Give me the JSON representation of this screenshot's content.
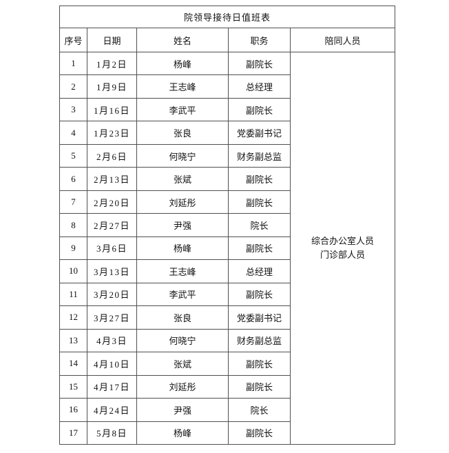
{
  "title": "院领导接待日值班表",
  "columns": [
    "序号",
    "日期",
    "姓名",
    "职务",
    "陪同人员"
  ],
  "rows": [
    {
      "no": "1",
      "date": "1月2日",
      "name": "杨峰",
      "position": "副院长"
    },
    {
      "no": "2",
      "date": "1月9日",
      "name": "王志峰",
      "position": "总经理"
    },
    {
      "no": "3",
      "date": "1月16日",
      "name": "李武平",
      "position": "副院长"
    },
    {
      "no": "4",
      "date": "1月23日",
      "name": "张良",
      "position": "党委副书记"
    },
    {
      "no": "5",
      "date": "2月6日",
      "name": "何晓宁",
      "position": "财务副总监"
    },
    {
      "no": "6",
      "date": "2月13日",
      "name": "张斌",
      "position": "副院长"
    },
    {
      "no": "7",
      "date": "2月20日",
      "name": "刘延彤",
      "position": "副院长"
    },
    {
      "no": "8",
      "date": "2月27日",
      "name": "尹强",
      "position": "院长"
    },
    {
      "no": "9",
      "date": "3月6日",
      "name": "杨峰",
      "position": "副院长"
    },
    {
      "no": "10",
      "date": "3月13日",
      "name": "王志峰",
      "position": "总经理"
    },
    {
      "no": "11",
      "date": "3月20日",
      "name": "李武平",
      "position": "副院长"
    },
    {
      "no": "12",
      "date": "3月27日",
      "name": "张良",
      "position": "党委副书记"
    },
    {
      "no": "13",
      "date": "4月3日",
      "name": "何晓宁",
      "position": "财务副总监"
    },
    {
      "no": "14",
      "date": "4月10日",
      "name": "张斌",
      "position": "副院长"
    },
    {
      "no": "15",
      "date": "4月17日",
      "name": "刘延彤",
      "position": "副院长"
    },
    {
      "no": "16",
      "date": "4月24日",
      "name": "尹强",
      "position": "院长"
    },
    {
      "no": "17",
      "date": "5月8日",
      "name": "杨峰",
      "position": "副院长"
    }
  ],
  "accompanying_lines": [
    "综合办公室人员",
    "门诊部人员"
  ],
  "colors": {
    "border": "#4f4f4f",
    "text": "#111111",
    "background": "#ffffff"
  }
}
